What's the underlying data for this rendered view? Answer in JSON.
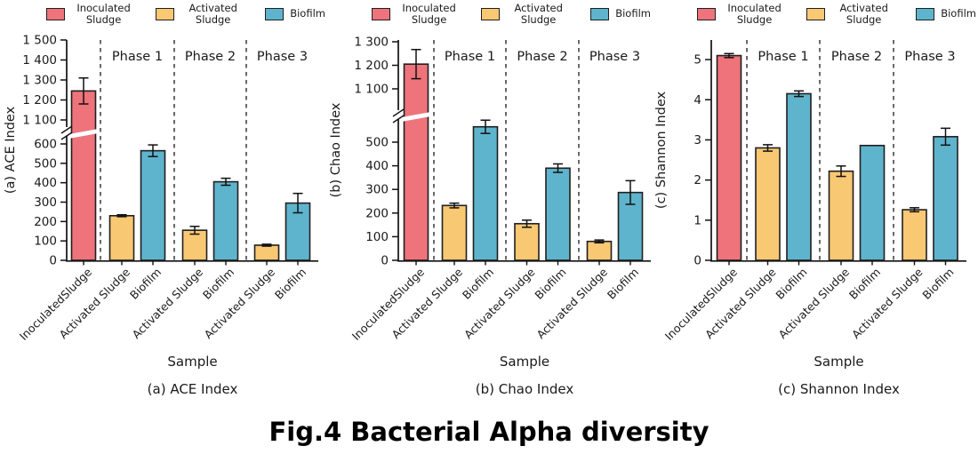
{
  "figure": {
    "title": "Fig.4 Bacterial Alpha diversity"
  },
  "legend": {
    "items": [
      {
        "label": "Inoculated Sludge",
        "color": "#ee737b"
      },
      {
        "label": "Activated Sludge",
        "color": "#f9c873"
      },
      {
        "label": "Biofilm",
        "color": "#5fb4cd"
      }
    ],
    "swatch_border_color": "#1f1f1f"
  },
  "chart_data": [
    {
      "type": "bar",
      "caption": "(a) ACE Index",
      "ylabel": "(a) ACE Index",
      "xlabel": "Sample",
      "phase_labels": [
        "Phase 1",
        "Phase 2",
        "Phase 3"
      ],
      "axis": {
        "broken": true,
        "lower_ticks": [
          0,
          100,
          200,
          300,
          400,
          500,
          600
        ],
        "upper_ticks": [
          1100,
          1200,
          1300,
          1400,
          1500
        ],
        "ylim_lower": [
          0,
          600
        ],
        "ylim_upper": [
          1100,
          1500
        ]
      },
      "bars": [
        {
          "x_label": "InoculatedSludge",
          "series": "Inoculated Sludge",
          "group": 0,
          "value": 1245,
          "error": 65
        },
        {
          "x_label": "Activated Sludge",
          "series": "Activated Sludge",
          "group": 1,
          "value": 230,
          "error": 5
        },
        {
          "x_label": "Biofilm",
          "series": "Biofilm",
          "group": 1,
          "value": 565,
          "error": 30
        },
        {
          "x_label": "Activated Sludge",
          "series": "Activated Sludge",
          "group": 2,
          "value": 155,
          "error": 20
        },
        {
          "x_label": "Biofilm",
          "series": "Biofilm",
          "group": 2,
          "value": 405,
          "error": 18
        },
        {
          "x_label": "Activated Sludge",
          "series": "Activated Sludge",
          "group": 3,
          "value": 78,
          "error": 5
        },
        {
          "x_label": "Biofilm",
          "series": "Biofilm",
          "group": 3,
          "value": 295,
          "error": 50
        }
      ]
    },
    {
      "type": "bar",
      "caption": "(b) Chao Index",
      "ylabel": "(b) Chao Index",
      "xlabel": "Sample",
      "phase_labels": [
        "Phase 1",
        "Phase 2",
        "Phase 3"
      ],
      "axis": {
        "broken": true,
        "lower_ticks": [
          0,
          100,
          200,
          300,
          400,
          500
        ],
        "upper_ticks": [
          1100,
          1200,
          1300
        ],
        "ylim_lower": [
          0,
          500
        ],
        "ylim_upper": [
          1100,
          1300
        ]
      },
      "bars": [
        {
          "x_label": "InoculatedSludge",
          "series": "Inoculated Sludge",
          "group": 0,
          "value": 1205,
          "error": 62
        },
        {
          "x_label": "Activated Sludge",
          "series": "Activated Sludge",
          "group": 1,
          "value": 232,
          "error": 10
        },
        {
          "x_label": "Biofilm",
          "series": "Biofilm",
          "group": 1,
          "value": 565,
          "error": 28
        },
        {
          "x_label": "Activated Sludge",
          "series": "Activated Sludge",
          "group": 2,
          "value": 155,
          "error": 15
        },
        {
          "x_label": "Biofilm",
          "series": "Biofilm",
          "group": 2,
          "value": 390,
          "error": 18
        },
        {
          "x_label": "Activated Sludge",
          "series": "Activated Sludge",
          "group": 3,
          "value": 80,
          "error": 6
        },
        {
          "x_label": "Biofilm",
          "series": "Biofilm",
          "group": 3,
          "value": 287,
          "error": 50
        }
      ]
    },
    {
      "type": "bar",
      "caption": "(c) Shannon Index",
      "ylabel": "(c) Shannon Index",
      "xlabel": "Sample",
      "phase_labels": [
        "Phase 1",
        "Phase 2",
        "Phase 3"
      ],
      "axis": {
        "broken": false,
        "lower_ticks": [
          0,
          1,
          2,
          3,
          4,
          5
        ],
        "ylim_lower": [
          0,
          5.4
        ]
      },
      "bars": [
        {
          "x_label": "InoculatedSludge",
          "series": "Inoculated Sludge",
          "group": 0,
          "value": 5.1,
          "error": 0.05
        },
        {
          "x_label": "Activated Sludge",
          "series": "Activated Sludge",
          "group": 1,
          "value": 2.8,
          "error": 0.08
        },
        {
          "x_label": "Biofilm",
          "series": "Biofilm",
          "group": 1,
          "value": 4.15,
          "error": 0.07
        },
        {
          "x_label": "Activated Sludge",
          "series": "Activated Sludge",
          "group": 2,
          "value": 2.22,
          "error": 0.13
        },
        {
          "x_label": "Biofilm",
          "series": "Biofilm",
          "group": 2,
          "value": 2.86,
          "error": 0
        },
        {
          "x_label": "Activated Sludge",
          "series": "Activated Sludge",
          "group": 3,
          "value": 1.26,
          "error": 0.05
        },
        {
          "x_label": "Biofilm",
          "series": "Biofilm",
          "group": 3,
          "value": 3.08,
          "error": 0.21
        }
      ]
    }
  ]
}
